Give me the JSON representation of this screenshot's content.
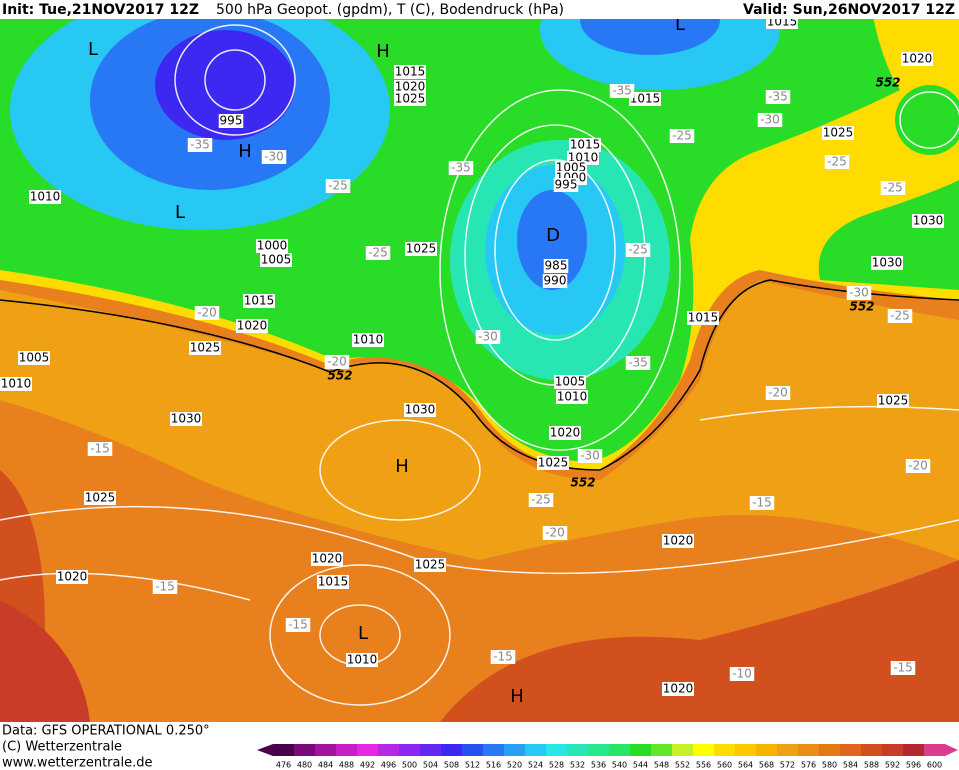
{
  "header": {
    "init": "Init: Tue,21NOV2017 12Z",
    "title": "500 hPa Geopot. (gpdm), T (C), Bodendruck (hPa)",
    "valid": "Valid: Sun,26NOV2017 12Z"
  },
  "footer": {
    "data": "Data: GFS OPERATIONAL 0.250°",
    "copyright": "(C) Wetterzentrale",
    "url": "www.wetterzentrale.de"
  },
  "colorbar": {
    "ticks": [
      476,
      480,
      484,
      488,
      492,
      496,
      500,
      504,
      508,
      512,
      516,
      520,
      524,
      528,
      532,
      536,
      540,
      544,
      548,
      552,
      556,
      560,
      564,
      568,
      572,
      576,
      580,
      584,
      588,
      592,
      596,
      600
    ],
    "colors": [
      "#4a004a",
      "#7a0a7a",
      "#a014a0",
      "#c81ec8",
      "#e628e6",
      "#b428e6",
      "#8c28f0",
      "#6428f0",
      "#3c28f0",
      "#2850f0",
      "#2878f5",
      "#28a0f5",
      "#28c8f5",
      "#28e6e6",
      "#28e6b4",
      "#28e68c",
      "#28e664",
      "#28dc28",
      "#64e628",
      "#c8f028",
      "#ffff00",
      "#ffdc00",
      "#ffc800",
      "#f5b400",
      "#f0a014",
      "#eb8c14",
      "#e67814",
      "#e1641e",
      "#d2501e",
      "#c83c28",
      "#b42832",
      "#dc3c8c"
    ]
  },
  "map": {
    "pressure_centers": [
      "L",
      "H",
      "H",
      "L",
      "D",
      "H",
      "L",
      "H",
      "L"
    ],
    "isobar_labels": [
      "1015",
      "1020",
      "1025",
      "995",
      "1010",
      "1000",
      "1005",
      "1015",
      "1020",
      "1025",
      "1005",
      "1010",
      "1010",
      "1025",
      "1015",
      "1010",
      "1005",
      "1000",
      "995",
      "985",
      "990",
      "1005",
      "1010",
      "1020",
      "1025",
      "1030",
      "1030",
      "1025",
      "1020",
      "1025",
      "1015",
      "1020",
      "1010",
      "1020",
      "1020",
      "1015",
      "1015",
      "1020",
      "1025",
      "1030",
      "1030",
      "1015",
      "1025"
    ],
    "temperature_labels": [
      "-35",
      "-30",
      "-35",
      "-25",
      "-25",
      "-35",
      "-35",
      "-30",
      "-25",
      "-25",
      "-25",
      "-25",
      "-30",
      "-25",
      "-30",
      "-35",
      "-20",
      "-20",
      "-20",
      "-15",
      "-30",
      "-25",
      "-20",
      "-15",
      "-20",
      "-15",
      "-15",
      "-15",
      "-10",
      "-15"
    ],
    "height_labels": [
      "552",
      "552",
      "552",
      "552"
    ]
  }
}
